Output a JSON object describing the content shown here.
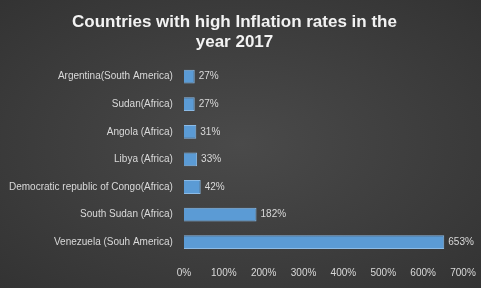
{
  "chart_data": {
    "type": "bar",
    "orientation": "horizontal",
    "title": "Countries with high Inflation rates in the year 2017",
    "categories": [
      "Argentina(South America)",
      "Sudan(Africa)",
      "Angola (Africa)",
      "Libya (Africa)",
      "Democratic republic of Congo(Africa)",
      "South Sudan (Africa)",
      "Venezuela (Souh America)"
    ],
    "values": [
      27,
      27,
      31,
      33,
      42,
      182,
      653
    ],
    "value_labels": [
      "27%",
      "27%",
      "31%",
      "33%",
      "42%",
      "182%",
      "653%"
    ],
    "data_labels": true,
    "color": "#5b9bd5",
    "xlim": [
      0,
      700
    ],
    "xticks": [
      {
        "value": 0,
        "label": "0%"
      },
      {
        "value": 100,
        "label": "100%"
      },
      {
        "value": 200,
        "label": "200%"
      },
      {
        "value": 300,
        "label": "300%"
      },
      {
        "value": 400,
        "label": "400%"
      },
      {
        "value": 500,
        "label": "500%"
      },
      {
        "value": 600,
        "label": "600%"
      },
      {
        "value": 700,
        "label": "700%"
      }
    ],
    "grid": false
  }
}
